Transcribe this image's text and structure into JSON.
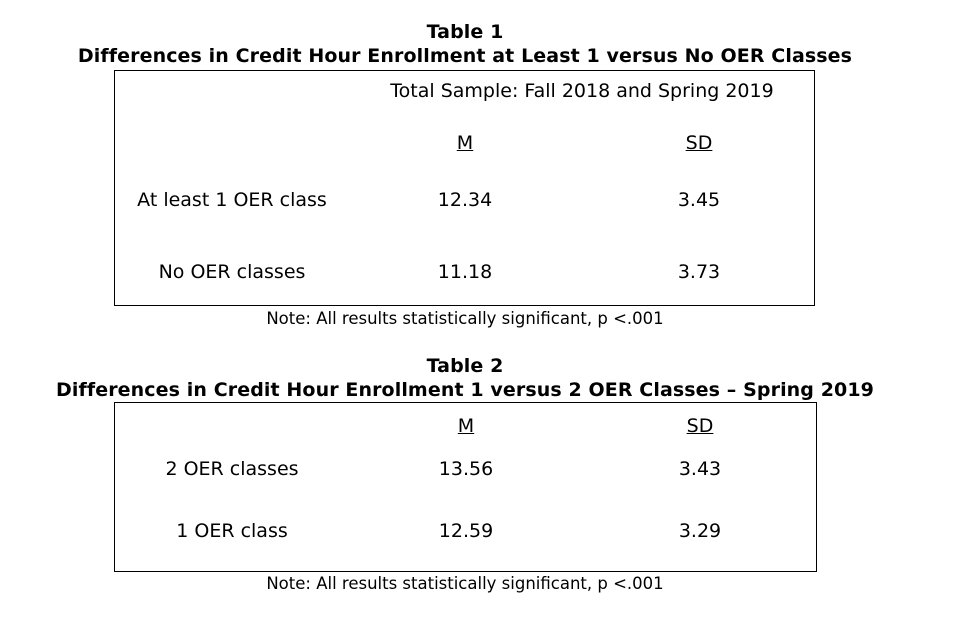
{
  "table1": {
    "label": "Table 1",
    "title": "Differences in Credit Hour Enrollment at Least 1 versus No OER Classes",
    "subtitle": "Total Sample: Fall 2018 and Spring 2019",
    "col_m": "M",
    "col_sd": "SD",
    "rows": [
      {
        "label": "At least 1 OER class",
        "m": "12.34",
        "sd": "3.45"
      },
      {
        "label": "No OER classes",
        "m": "11.18",
        "sd": "3.73"
      }
    ],
    "note": "Note: All results statistically significant, p <.001"
  },
  "table2": {
    "label": "Table 2",
    "title": "Differences in Credit Hour Enrollment 1 versus 2 OER Classes – Spring 2019",
    "col_m": "M",
    "col_sd": "SD",
    "rows": [
      {
        "label": "2 OER classes",
        "m": "13.56",
        "sd": "3.43"
      },
      {
        "label": "1 OER class",
        "m": "12.59",
        "sd": "3.29"
      }
    ],
    "note": "Note: All results statistically significant, p <.001"
  }
}
